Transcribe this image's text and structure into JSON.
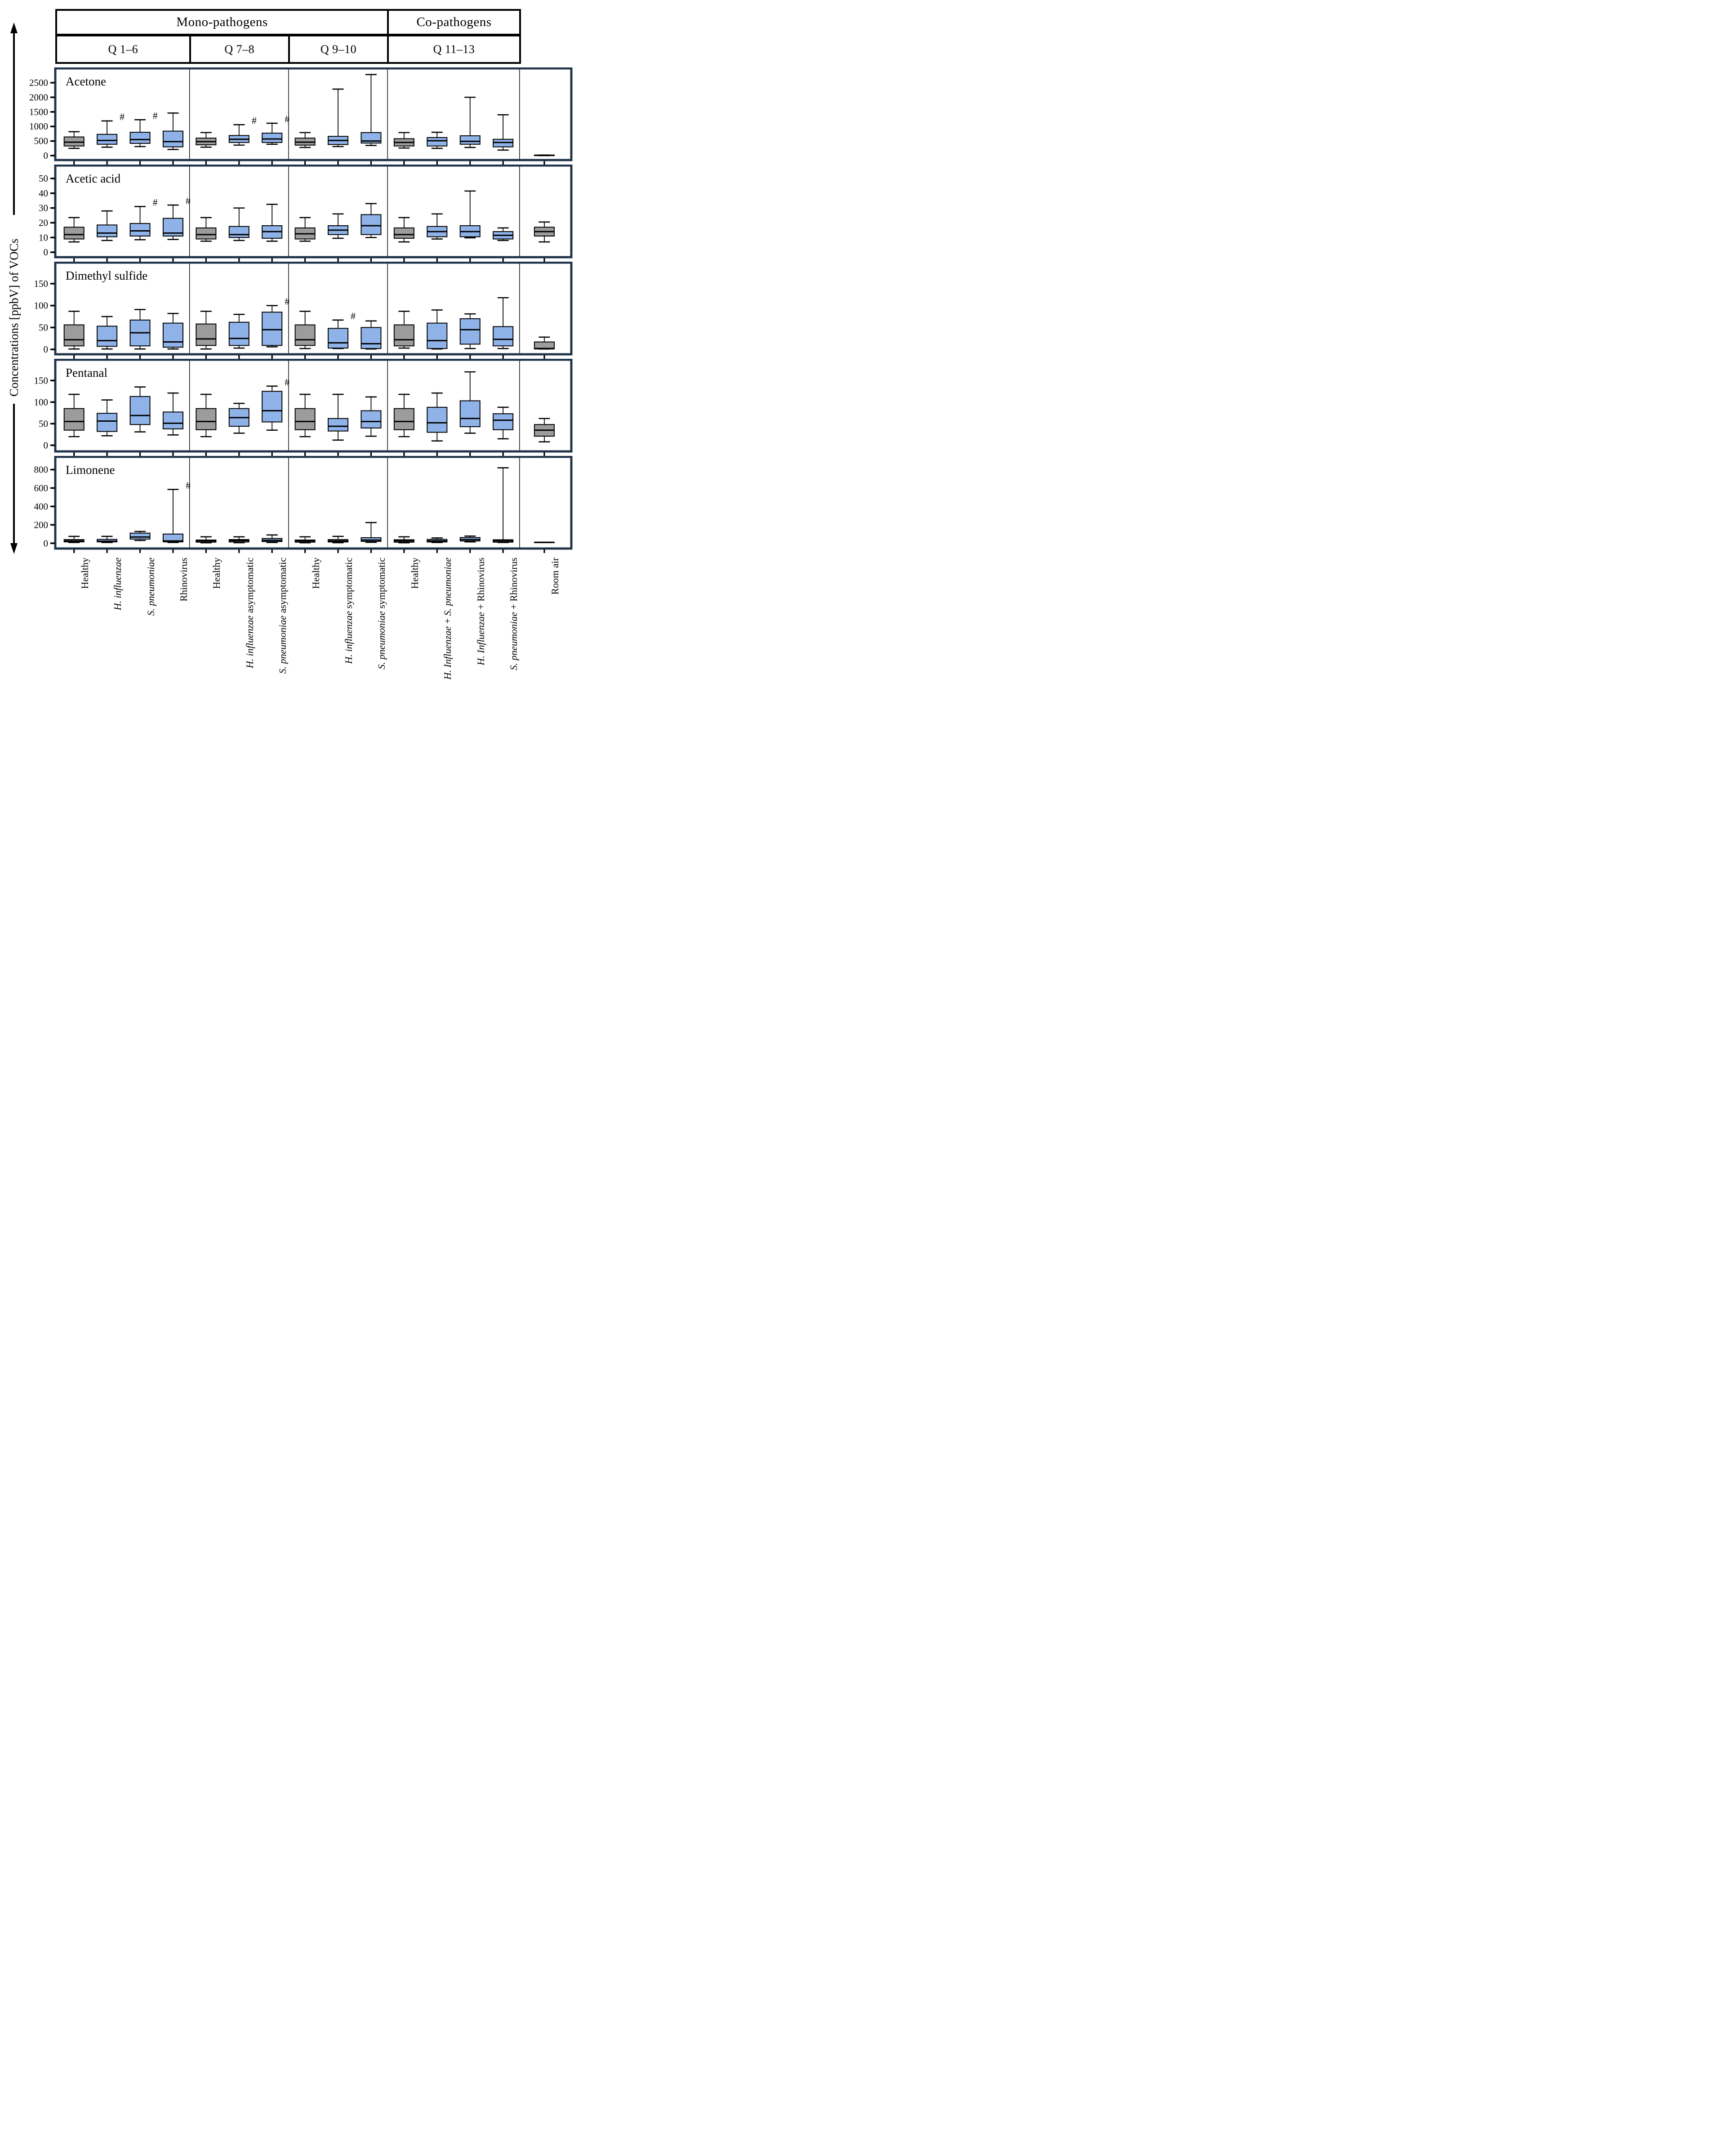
{
  "chart_data": {
    "type": "boxplot",
    "ylabel": "Concentrations [ppbV] of VOCs",
    "legend_position": "none",
    "grid": false,
    "colors": {
      "healthy_and_room_air": "#9c9c9c",
      "pathogen": "#8fb3e8",
      "panel_border": "#203349",
      "line": "#000000"
    },
    "header": {
      "groups": [
        {
          "label": "Mono-pathogens",
          "slots": 10
        },
        {
          "label": "Co-pathogens",
          "slots": 4
        }
      ],
      "sections": [
        {
          "label": "Q 1–6",
          "slots": 4
        },
        {
          "label": "Q 7–8",
          "slots": 3
        },
        {
          "label": "Q 9–10",
          "slots": 3
        },
        {
          "label": "Q 11–13",
          "slots": 4
        },
        {
          "label": "",
          "slots": 1.5
        }
      ]
    },
    "columns": [
      {
        "section": "Q 1–6",
        "color": "gray",
        "parts": [
          {
            "t": "Healthy",
            "i": false
          }
        ]
      },
      {
        "section": "Q 1–6",
        "color": "blue",
        "parts": [
          {
            "t": "H. influenzae",
            "i": true
          }
        ]
      },
      {
        "section": "Q 1–6",
        "color": "blue",
        "parts": [
          {
            "t": "S. pneumoniae",
            "i": true
          }
        ]
      },
      {
        "section": "Q 1–6",
        "color": "blue",
        "parts": [
          {
            "t": "Rhinovirus",
            "i": false
          }
        ]
      },
      {
        "section": "Q 7–8",
        "color": "gray",
        "parts": [
          {
            "t": "Healthy",
            "i": false
          }
        ]
      },
      {
        "section": "Q 7–8",
        "color": "blue",
        "parts": [
          {
            "t": "H. influenzae",
            "i": true
          },
          {
            "t": " asymptomatic",
            "i": false
          }
        ]
      },
      {
        "section": "Q 7–8",
        "color": "blue",
        "parts": [
          {
            "t": "S. pneumoniae",
            "i": true
          },
          {
            "t": " asymptomatic",
            "i": false
          }
        ]
      },
      {
        "section": "Q 9–10",
        "color": "gray",
        "parts": [
          {
            "t": "Healthy",
            "i": false
          }
        ]
      },
      {
        "section": "Q 9–10",
        "color": "blue",
        "parts": [
          {
            "t": "H. influenzae",
            "i": true
          },
          {
            "t": " symptomatic",
            "i": false
          }
        ]
      },
      {
        "section": "Q 9–10",
        "color": "blue",
        "parts": [
          {
            "t": "S. pneumoniae",
            "i": true
          },
          {
            "t": " symptomatic",
            "i": false
          }
        ]
      },
      {
        "section": "Q 11–13",
        "color": "gray",
        "parts": [
          {
            "t": "Healthy",
            "i": false
          }
        ]
      },
      {
        "section": "Q 11–13",
        "color": "blue",
        "parts": [
          {
            "t": "H. Influenzae",
            "i": true
          },
          {
            "t": " + ",
            "i": false
          },
          {
            "t": "S. pneumoniae",
            "i": true
          }
        ]
      },
      {
        "section": "Q 11–13",
        "color": "blue",
        "parts": [
          {
            "t": "H. Influenzae",
            "i": true
          },
          {
            "t": " + ",
            "i": false
          },
          {
            "t": "Rhinovirus",
            "i": false
          }
        ]
      },
      {
        "section": "Q 11–13",
        "color": "blue",
        "parts": [
          {
            "t": "S. pneumoniae",
            "i": true
          },
          {
            "t": " + ",
            "i": false
          },
          {
            "t": "Rhinovirus",
            "i": false
          }
        ]
      },
      {
        "section": "Room air",
        "color": "gray",
        "parts": [
          {
            "t": "Room air",
            "i": false
          }
        ]
      }
    ],
    "rows": [
      {
        "title": "Acetone",
        "ymin": -60,
        "ymax": 2900,
        "ticks": [
          0,
          500,
          1000,
          1500,
          2000,
          2500
        ],
        "boxes": [
          {
            "lo": 250,
            "q1": 330,
            "med": 460,
            "q3": 640,
            "hi": 820
          },
          {
            "lo": 290,
            "q1": 390,
            "med": 520,
            "q3": 730,
            "hi": 1190,
            "h": 1
          },
          {
            "lo": 310,
            "q1": 420,
            "med": 550,
            "q3": 800,
            "hi": 1230,
            "h": 1
          },
          {
            "lo": 210,
            "q1": 300,
            "med": 480,
            "q3": 840,
            "hi": 1460
          },
          {
            "lo": 290,
            "q1": 370,
            "med": 480,
            "q3": 600,
            "hi": 790
          },
          {
            "lo": 360,
            "q1": 450,
            "med": 560,
            "q3": 690,
            "hi": 1060,
            "h": 1
          },
          {
            "lo": 390,
            "q1": 450,
            "med": 570,
            "q3": 770,
            "hi": 1110,
            "h": 1
          },
          {
            "lo": 280,
            "q1": 360,
            "med": 460,
            "q3": 600,
            "hi": 790
          },
          {
            "lo": 310,
            "q1": 380,
            "med": 520,
            "q3": 660,
            "hi": 2280
          },
          {
            "lo": 350,
            "q1": 430,
            "med": 500,
            "q3": 790,
            "hi": 2780
          },
          {
            "lo": 260,
            "q1": 330,
            "med": 450,
            "q3": 580,
            "hi": 790
          },
          {
            "lo": 250,
            "q1": 330,
            "med": 510,
            "q3": 620,
            "hi": 800
          },
          {
            "lo": 280,
            "q1": 390,
            "med": 490,
            "q3": 680,
            "hi": 2000
          },
          {
            "lo": 190,
            "q1": 300,
            "med": 450,
            "q3": 560,
            "hi": 1400
          },
          {
            "lo": 0,
            "q1": 0,
            "med": 8,
            "q3": 20,
            "hi": 20
          }
        ]
      },
      {
        "title": "Acetic acid",
        "ymin": -1.5,
        "ymax": 57,
        "ticks": [
          0,
          10,
          20,
          30,
          40,
          50
        ],
        "boxes": [
          {
            "lo": 7,
            "q1": 9,
            "med": 12,
            "q3": 17,
            "hi": 23.5
          },
          {
            "lo": 8,
            "q1": 10.5,
            "med": 13,
            "q3": 18.5,
            "hi": 28
          },
          {
            "lo": 8.5,
            "q1": 11,
            "med": 14.5,
            "q3": 19.5,
            "hi": 31,
            "h": 1
          },
          {
            "lo": 8.7,
            "q1": 11,
            "med": 13,
            "q3": 23,
            "hi": 32,
            "h": 1
          },
          {
            "lo": 7.5,
            "q1": 9,
            "med": 12,
            "q3": 16.5,
            "hi": 23.5
          },
          {
            "lo": 8,
            "q1": 10,
            "med": 12,
            "q3": 17.5,
            "hi": 30
          },
          {
            "lo": 7.5,
            "q1": 9.5,
            "med": 14,
            "q3": 18,
            "hi": 32.5
          },
          {
            "lo": 7.5,
            "q1": 9,
            "med": 12.5,
            "q3": 16.5,
            "hi": 23.5
          },
          {
            "lo": 9.5,
            "q1": 12,
            "med": 15,
            "q3": 18,
            "hi": 26
          },
          {
            "lo": 10,
            "q1": 12,
            "med": 18,
            "q3": 25.5,
            "hi": 33
          },
          {
            "lo": 7,
            "q1": 9.5,
            "med": 12,
            "q3": 16.5,
            "hi": 23.5
          },
          {
            "lo": 9,
            "q1": 10.5,
            "med": 14,
            "q3": 17.5,
            "hi": 26
          },
          {
            "lo": 9.8,
            "q1": 10.5,
            "med": 14,
            "q3": 18,
            "hi": 41.5
          },
          {
            "lo": 8,
            "q1": 9,
            "med": 11.5,
            "q3": 14,
            "hi": 16.5
          },
          {
            "lo": 7,
            "q1": 11,
            "med": 14,
            "q3": 17,
            "hi": 20.5
          }
        ]
      },
      {
        "title": "Dimethyl sulfide",
        "ymin": -5,
        "ymax": 192,
        "ticks": [
          0,
          50,
          100,
          150
        ],
        "boxes": [
          {
            "lo": 1,
            "q1": 8,
            "med": 22,
            "q3": 56,
            "hi": 87
          },
          {
            "lo": 1,
            "q1": 7,
            "med": 20,
            "q3": 53,
            "hi": 75
          },
          {
            "lo": 1,
            "q1": 8,
            "med": 38,
            "q3": 67,
            "hi": 91
          },
          {
            "lo": 1,
            "q1": 5,
            "med": 17,
            "q3": 60,
            "hi": 82
          },
          {
            "lo": 1,
            "q1": 9,
            "med": 24,
            "q3": 58,
            "hi": 87
          },
          {
            "lo": 3,
            "q1": 9,
            "med": 25,
            "q3": 62,
            "hi": 80
          },
          {
            "lo": 6,
            "q1": 9,
            "med": 45,
            "q3": 85,
            "hi": 100,
            "h": 1
          },
          {
            "lo": 2,
            "q1": 9,
            "med": 22,
            "q3": 56,
            "hi": 87
          },
          {
            "lo": 2,
            "q1": 3,
            "med": 15,
            "q3": 48,
            "hi": 67,
            "h": 1
          },
          {
            "lo": 1,
            "q1": 2,
            "med": 13,
            "q3": 50,
            "hi": 65
          },
          {
            "lo": 3,
            "q1": 8,
            "med": 22,
            "q3": 56,
            "hi": 87
          },
          {
            "lo": 1,
            "q1": 2,
            "med": 20,
            "q3": 60,
            "hi": 90
          },
          {
            "lo": 2,
            "q1": 12,
            "med": 45,
            "q3": 70,
            "hi": 81
          },
          {
            "lo": 2,
            "q1": 8,
            "med": 23,
            "q3": 52,
            "hi": 118
          },
          {
            "lo": 1,
            "q1": 1,
            "med": 2,
            "q3": 17,
            "hi": 28
          }
        ]
      },
      {
        "title": "Pentanal",
        "ymin": -8,
        "ymax": 192,
        "ticks": [
          0,
          50,
          100,
          150
        ],
        "boxes": [
          {
            "lo": 20,
            "q1": 35,
            "med": 55,
            "q3": 85,
            "hi": 118
          },
          {
            "lo": 22,
            "q1": 32,
            "med": 56,
            "q3": 74,
            "hi": 105
          },
          {
            "lo": 31,
            "q1": 48,
            "med": 69,
            "q3": 113,
            "hi": 135
          },
          {
            "lo": 24,
            "q1": 38,
            "med": 51,
            "q3": 77,
            "hi": 121
          },
          {
            "lo": 20,
            "q1": 36,
            "med": 55,
            "q3": 85,
            "hi": 118
          },
          {
            "lo": 28,
            "q1": 44,
            "med": 64,
            "q3": 85,
            "hi": 97
          },
          {
            "lo": 35,
            "q1": 54,
            "med": 80,
            "q3": 125,
            "hi": 137,
            "h": 1
          },
          {
            "lo": 20,
            "q1": 36,
            "med": 55,
            "q3": 85,
            "hi": 118
          },
          {
            "lo": 12,
            "q1": 33,
            "med": 44,
            "q3": 62,
            "hi": 118
          },
          {
            "lo": 21,
            "q1": 40,
            "med": 55,
            "q3": 80,
            "hi": 112
          },
          {
            "lo": 20,
            "q1": 36,
            "med": 55,
            "q3": 85,
            "hi": 118
          },
          {
            "lo": 10,
            "q1": 30,
            "med": 52,
            "q3": 88,
            "hi": 121
          },
          {
            "lo": 28,
            "q1": 43,
            "med": 62,
            "q3": 103,
            "hi": 170
          },
          {
            "lo": 15,
            "q1": 36,
            "med": 58,
            "q3": 73,
            "hi": 88
          },
          {
            "lo": 8,
            "q1": 21,
            "med": 35,
            "q3": 48,
            "hi": 62
          }
        ]
      },
      {
        "title": "Limonene",
        "ymin": -28,
        "ymax": 910,
        "ticks": [
          0,
          200,
          400,
          600,
          800
        ],
        "boxes": [
          {
            "lo": 8,
            "q1": 15,
            "med": 25,
            "q3": 40,
            "hi": 75
          },
          {
            "lo": 8,
            "q1": 15,
            "med": 22,
            "q3": 42,
            "hi": 75
          },
          {
            "lo": 30,
            "q1": 45,
            "med": 68,
            "q3": 110,
            "hi": 128
          },
          {
            "lo": 8,
            "q1": 15,
            "med": 25,
            "q3": 100,
            "hi": 585,
            "h": 1
          },
          {
            "lo": 5,
            "q1": 12,
            "med": 25,
            "q3": 35,
            "hi": 70
          },
          {
            "lo": 6,
            "q1": 14,
            "med": 28,
            "q3": 40,
            "hi": 70
          },
          {
            "lo": 8,
            "q1": 18,
            "med": 32,
            "q3": 52,
            "hi": 90
          },
          {
            "lo": 5,
            "q1": 12,
            "med": 25,
            "q3": 35,
            "hi": 70
          },
          {
            "lo": 6,
            "q1": 14,
            "med": 26,
            "q3": 40,
            "hi": 75
          },
          {
            "lo": 10,
            "q1": 20,
            "med": 34,
            "q3": 60,
            "hi": 225
          },
          {
            "lo": 5,
            "q1": 12,
            "med": 25,
            "q3": 38,
            "hi": 70
          },
          {
            "lo": 8,
            "q1": 14,
            "med": 26,
            "q3": 42,
            "hi": 58
          },
          {
            "lo": 15,
            "q1": 25,
            "med": 40,
            "q3": 62,
            "hi": 78
          },
          {
            "lo": 8,
            "q1": 12,
            "med": 25,
            "q3": 38,
            "hi": 820
          },
          {
            "lo": 10,
            "q1": 10,
            "med": 10,
            "q3": 10,
            "hi": 10
          }
        ]
      }
    ],
    "annotations": {
      "hash_symbol": "#"
    }
  }
}
